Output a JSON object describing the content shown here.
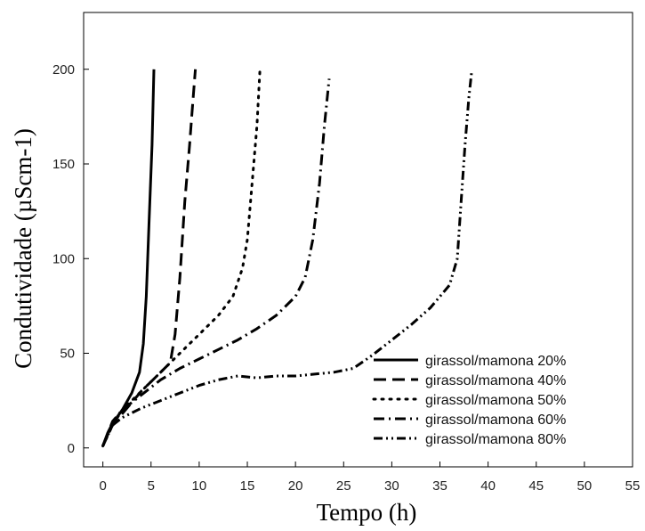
{
  "chart_data": {
    "type": "line",
    "title": "",
    "xlabel": "Tempo (h)",
    "ylabel": "Condutividade (µScm-1)",
    "xlim": [
      -2,
      55
    ],
    "ylim": [
      -10,
      230
    ],
    "x_ticks": [
      0,
      5,
      10,
      15,
      20,
      25,
      30,
      35,
      40,
      45,
      50,
      55
    ],
    "y_ticks": [
      0,
      50,
      100,
      150,
      200
    ],
    "grid": false,
    "legend_position": "bottom-right",
    "series": [
      {
        "name": "girassol/mamona 20%",
        "line_style": "solid",
        "points": [
          [
            0,
            1
          ],
          [
            0.5,
            8
          ],
          [
            1,
            13
          ],
          [
            2,
            20
          ],
          [
            3,
            29
          ],
          [
            3.8,
            40
          ],
          [
            4.2,
            55
          ],
          [
            4.5,
            80
          ],
          [
            4.8,
            120
          ],
          [
            5.1,
            160
          ],
          [
            5.3,
            200
          ]
        ]
      },
      {
        "name": "girassol/mamona 40%",
        "line_style": "dashed",
        "points": [
          [
            0,
            1
          ],
          [
            0.5,
            7
          ],
          [
            1,
            12
          ],
          [
            2,
            18
          ],
          [
            3,
            24
          ],
          [
            4,
            30
          ],
          [
            5,
            35
          ],
          [
            6,
            40
          ],
          [
            7,
            45
          ],
          [
            7.5,
            60
          ],
          [
            8,
            90
          ],
          [
            8.5,
            130
          ],
          [
            9,
            160
          ],
          [
            9.3,
            180
          ],
          [
            9.6,
            200
          ]
        ]
      },
      {
        "name": "girassol/mamona 50%",
        "line_style": "dotted",
        "points": [
          [
            0,
            1
          ],
          [
            1,
            12
          ],
          [
            2,
            20
          ],
          [
            4,
            30
          ],
          [
            6,
            40
          ],
          [
            8,
            50
          ],
          [
            10,
            60
          ],
          [
            12,
            70
          ],
          [
            13.5,
            80
          ],
          [
            14.5,
            95
          ],
          [
            15,
            110
          ],
          [
            15.5,
            140
          ],
          [
            16,
            170
          ],
          [
            16.3,
            199
          ]
        ]
      },
      {
        "name": "girassol/mamona 60%",
        "line_style": "dash-dot",
        "points": [
          [
            0,
            1
          ],
          [
            1,
            14
          ],
          [
            2,
            20
          ],
          [
            4,
            28
          ],
          [
            6,
            36
          ],
          [
            8,
            42
          ],
          [
            10,
            47
          ],
          [
            12,
            52
          ],
          [
            14,
            57
          ],
          [
            16,
            63
          ],
          [
            18,
            70
          ],
          [
            20,
            80
          ],
          [
            21,
            90
          ],
          [
            21.8,
            110
          ],
          [
            22.5,
            140
          ],
          [
            23,
            170
          ],
          [
            23.5,
            195
          ]
        ]
      },
      {
        "name": "girassol/mamona 80%",
        "line_style": "dash-dot-dot",
        "points": [
          [
            0,
            1
          ],
          [
            1,
            12
          ],
          [
            2,
            16
          ],
          [
            4,
            21
          ],
          [
            6,
            25
          ],
          [
            8,
            29
          ],
          [
            10,
            33
          ],
          [
            12,
            36
          ],
          [
            14,
            38
          ],
          [
            16,
            37
          ],
          [
            18,
            38
          ],
          [
            20,
            38
          ],
          [
            22,
            39
          ],
          [
            24,
            40
          ],
          [
            26,
            42
          ],
          [
            28,
            49
          ],
          [
            30,
            57
          ],
          [
            32,
            65
          ],
          [
            34,
            74
          ],
          [
            36,
            86
          ],
          [
            36.8,
            100
          ],
          [
            37.2,
            130
          ],
          [
            37.6,
            160
          ],
          [
            38,
            185
          ],
          [
            38.3,
            199
          ]
        ]
      }
    ]
  }
}
